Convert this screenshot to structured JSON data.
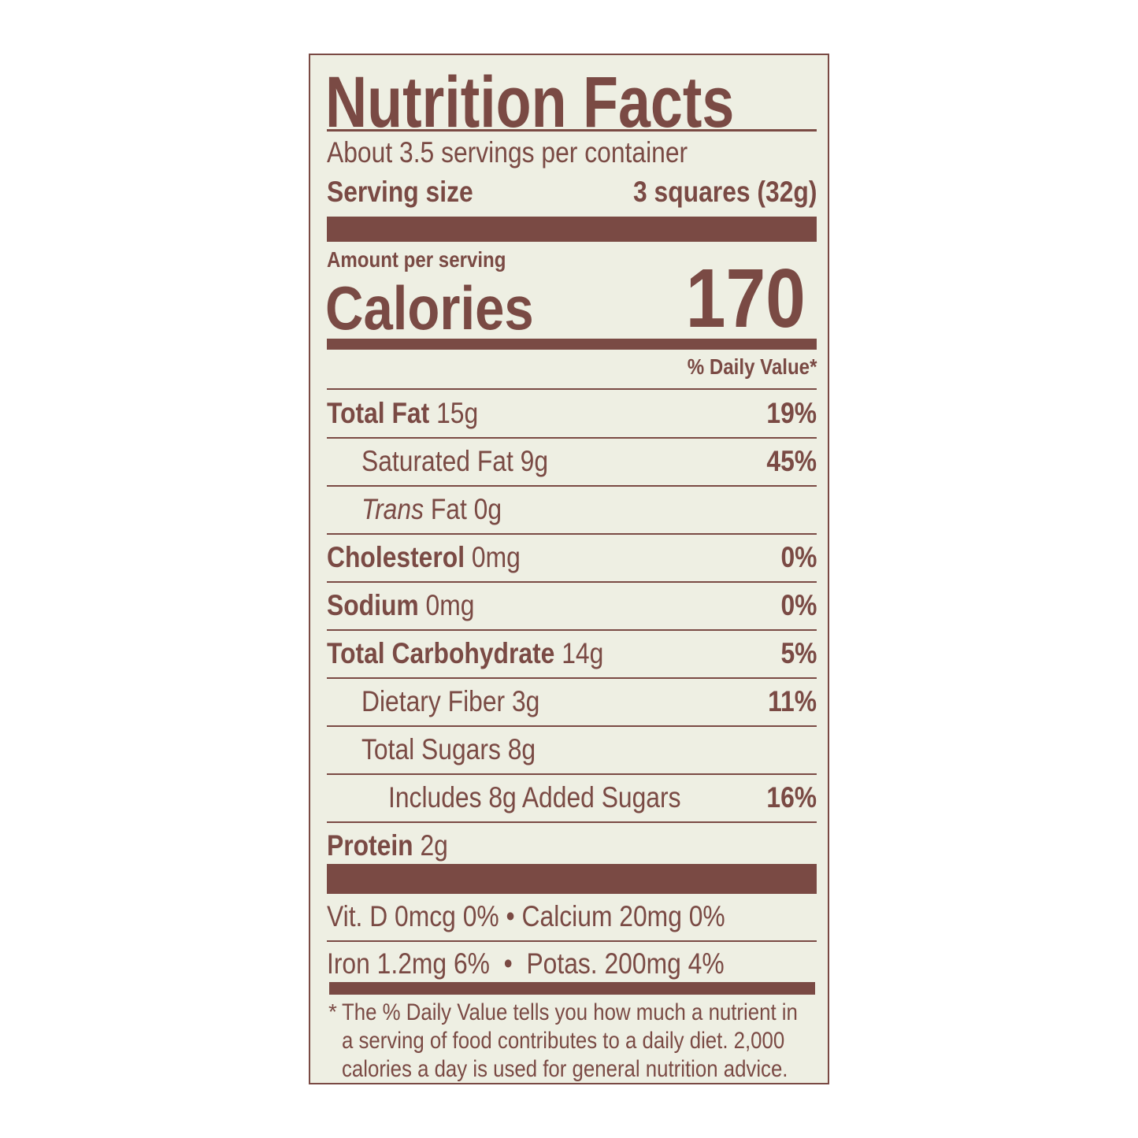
{
  "title": "Nutrition Facts",
  "servings_per_container": "About 3.5 servings per container",
  "serving_size": {
    "label": "Serving size",
    "value": "3 squares (32g)"
  },
  "amount_per_serving": "Amount per serving",
  "calories": {
    "label": "Calories",
    "value": "170"
  },
  "daily_value_header": "% Daily Value*",
  "nutrients": [
    {
      "name": "Total Fat",
      "amount": "15g",
      "dv": "19%",
      "bold": true,
      "indent": 0
    },
    {
      "name": "Saturated Fat",
      "amount": "9g",
      "dv": "45%",
      "bold": false,
      "indent": 1
    },
    {
      "name": "Trans",
      "name_suffix": "Fat",
      "amount": "0g",
      "dv": "",
      "bold": false,
      "indent": 1
    },
    {
      "name": "Cholesterol",
      "amount": "0mg",
      "dv": "0%",
      "bold": true,
      "indent": 0
    },
    {
      "name": "Sodium",
      "amount": "0mg",
      "dv": "0%",
      "bold": true,
      "indent": 0
    },
    {
      "name": "Total Carbohydrate",
      "amount": "14g",
      "dv": "5%",
      "bold": true,
      "indent": 0
    },
    {
      "name": "Dietary Fiber",
      "amount": "3g",
      "dv": "11%",
      "bold": false,
      "indent": 1
    },
    {
      "name": "Total Sugars",
      "amount": "8g",
      "dv": "",
      "bold": false,
      "indent": 1
    },
    {
      "name": "Includes 8g Added Sugars",
      "amount": "",
      "dv": "16%",
      "bold": false,
      "indent": 2
    },
    {
      "name": "Protein",
      "amount": "2g",
      "dv": "",
      "bold": true,
      "indent": 0
    }
  ],
  "vitamins": [
    "Vit. D 0mcg 0% • Calcium 20mg 0%",
    "Iron 1.2mg 6%  •  Potas. 200mg 4%"
  ],
  "footnote": {
    "asterisk": "*",
    "lines": [
      "The % Daily Value tells you how much a nutrient in",
      "a serving of food contributes to a daily diet. 2,000",
      "calories a day is used for general nutrition advice."
    ]
  },
  "colors": {
    "ink": "#7a4a44",
    "background": "#eeefe3"
  }
}
